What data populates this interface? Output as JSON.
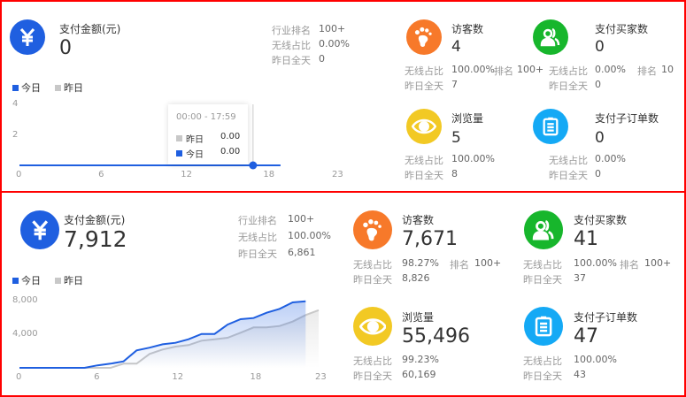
{
  "colors": {
    "today": "#1f5fe0",
    "yesterday": "#c8c8c8",
    "pay": "#1f5fe0",
    "visitor": "#f7792a",
    "buyer": "#17b62c",
    "pv": "#f2c924",
    "order": "#14a9f5",
    "border": "#ff0000"
  },
  "legend": {
    "today": "今日",
    "yesterday": "昨日"
  },
  "panels": [
    {
      "pay": {
        "icon": "yen-icon",
        "title": "支付金额(元)",
        "value": "0",
        "stats": [
          {
            "label": "行业排名",
            "value": "100+"
          },
          {
            "label": "无线占比",
            "value": "0.00%"
          },
          {
            "label": "昨日全天",
            "value": "0"
          }
        ]
      },
      "cards": [
        {
          "icon": "footprint-icon",
          "color": "visitor",
          "title": "访客数",
          "value": "4",
          "wireless_label": "无线占比",
          "wireless": "100.00%",
          "rank_label": "排名",
          "rank": "100+",
          "yday_label": "昨日全天",
          "yday": "7"
        },
        {
          "icon": "users-icon",
          "color": "buyer",
          "title": "支付买家数",
          "value": "0",
          "wireless_label": "无线占比",
          "wireless": "0.00%",
          "rank_label": "排名",
          "rank": "10",
          "yday_label": "昨日全天",
          "yday": "0"
        },
        {
          "icon": "eye-icon",
          "color": "pv",
          "title": "浏览量",
          "value": "5",
          "wireless_label": "无线占比",
          "wireless": "100.00%",
          "yday_label": "昨日全天",
          "yday": "8"
        },
        {
          "icon": "clipboard-icon",
          "color": "order",
          "title": "支付子订单数",
          "value": "0",
          "wireless_label": "无线占比",
          "wireless": "0.00%",
          "yday_label": "昨日全天",
          "yday": "0"
        }
      ],
      "tooltip": {
        "range": "00:00 - 17:59",
        "yesterday_label": "昨日",
        "yesterday_value": "0.00",
        "today_label": "今日",
        "today_value": "0.00",
        "hour": 17
      }
    },
    {
      "pay": {
        "icon": "yen-icon",
        "title": "支付金额(元)",
        "value": "7,912",
        "stats": [
          {
            "label": "行业排名",
            "value": "100+"
          },
          {
            "label": "无线占比",
            "value": "100.00%"
          },
          {
            "label": "昨日全天",
            "value": "6,861"
          }
        ]
      },
      "cards": [
        {
          "icon": "footprint-icon",
          "color": "visitor",
          "title": "访客数",
          "value": "7,671",
          "wireless_label": "无线占比",
          "wireless": "98.27%",
          "rank_label": "排名",
          "rank": "100+",
          "yday_label": "昨日全天",
          "yday": "8,826"
        },
        {
          "icon": "users-icon",
          "color": "buyer",
          "title": "支付买家数",
          "value": "41",
          "wireless_label": "无线占比",
          "wireless": "100.00%",
          "rank_label": "排名",
          "rank": "100+",
          "yday_label": "昨日全天",
          "yday": "37"
        },
        {
          "icon": "eye-icon",
          "color": "pv",
          "title": "浏览量",
          "value": "55,496",
          "wireless_label": "无线占比",
          "wireless": "99.23%",
          "yday_label": "昨日全天",
          "yday": "60,169"
        },
        {
          "icon": "clipboard-icon",
          "color": "order",
          "title": "支付子订单数",
          "value": "47",
          "wireless_label": "无线占比",
          "wireless": "100.00%",
          "yday_label": "昨日全天",
          "yday": "43"
        }
      ]
    }
  ],
  "chart_data": [
    {
      "type": "line",
      "xlim": [
        0,
        23
      ],
      "ylim": [
        0,
        4
      ],
      "x_ticks": [
        "0",
        "6",
        "12",
        "18",
        "23"
      ],
      "y_ticks": [
        "4",
        "2"
      ],
      "legend": "top-left",
      "series": [
        {
          "name": "今日",
          "values": [
            0,
            0,
            0,
            0,
            0,
            0,
            0,
            0,
            0,
            0,
            0,
            0,
            0,
            0,
            0,
            0,
            0,
            0,
            0,
            0
          ]
        }
      ]
    },
    {
      "type": "area",
      "xlim": [
        0,
        23
      ],
      "ylim": [
        0,
        8000
      ],
      "x_ticks": [
        "0",
        "6",
        "12",
        "18",
        "23"
      ],
      "y_ticks": [
        "8,000",
        "4,000"
      ],
      "legend": "top-left",
      "series": [
        {
          "name": "今日",
          "values": [
            0,
            0,
            0,
            0,
            0,
            0,
            300,
            500,
            770,
            2070,
            2400,
            2800,
            2980,
            3400,
            4030,
            4030,
            5150,
            5790,
            5930,
            6560,
            7020,
            7790,
            7912
          ]
        },
        {
          "name": "昨日",
          "values": [
            0,
            0,
            0,
            0,
            0,
            0,
            0,
            0,
            500,
            500,
            1650,
            2180,
            2530,
            2700,
            3230,
            3400,
            3580,
            4180,
            4810,
            4810,
            4980,
            5510,
            6280,
            6861
          ]
        }
      ]
    }
  ]
}
